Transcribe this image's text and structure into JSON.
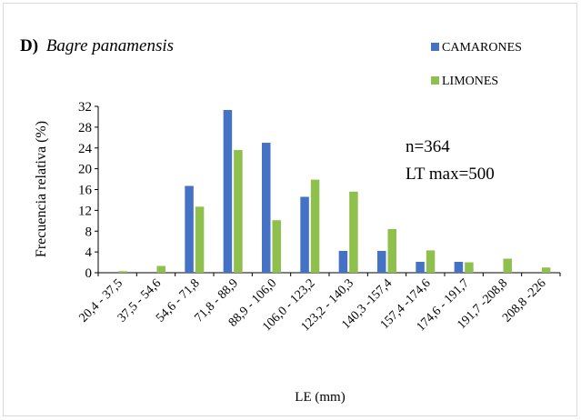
{
  "chart_data": {
    "type": "bar",
    "title_prefix": "D)",
    "title_species": "Bagre panamensis",
    "xlabel": "LE (mm)",
    "ylabel": "Frecuencia relativa (%)",
    "ylim": [
      0,
      32
    ],
    "yticks": [
      0,
      4,
      8,
      12,
      16,
      20,
      24,
      28,
      32
    ],
    "grid": false,
    "legend_position": "top-right",
    "categories": [
      "20,4 - 37,5",
      "37,5 - 54,6",
      "54,6 - 71,8",
      "71,8 - 88,9",
      "88,9 - 106,0",
      "106,0 - 123,2",
      "123,2 - 140,3",
      "140,3 -157,4",
      "157,4 -174,6",
      "174,6 - 191,7",
      "191,7 -208,8",
      "208,8 -226"
    ],
    "series": [
      {
        "name": "CAMARONES",
        "color": "#4472c4",
        "values": [
          0,
          0,
          16.7,
          31.3,
          25.0,
          14.6,
          4.2,
          4.2,
          2.1,
          2.1,
          0,
          0
        ]
      },
      {
        "name": "LIMONES",
        "color": "#8fbf4d",
        "values": [
          0.3,
          1.3,
          12.7,
          23.6,
          10.1,
          17.9,
          15.6,
          8.4,
          4.3,
          2.0,
          2.7,
          1.0
        ]
      }
    ],
    "annotations": [
      "n=364",
      "LT max=500"
    ]
  }
}
